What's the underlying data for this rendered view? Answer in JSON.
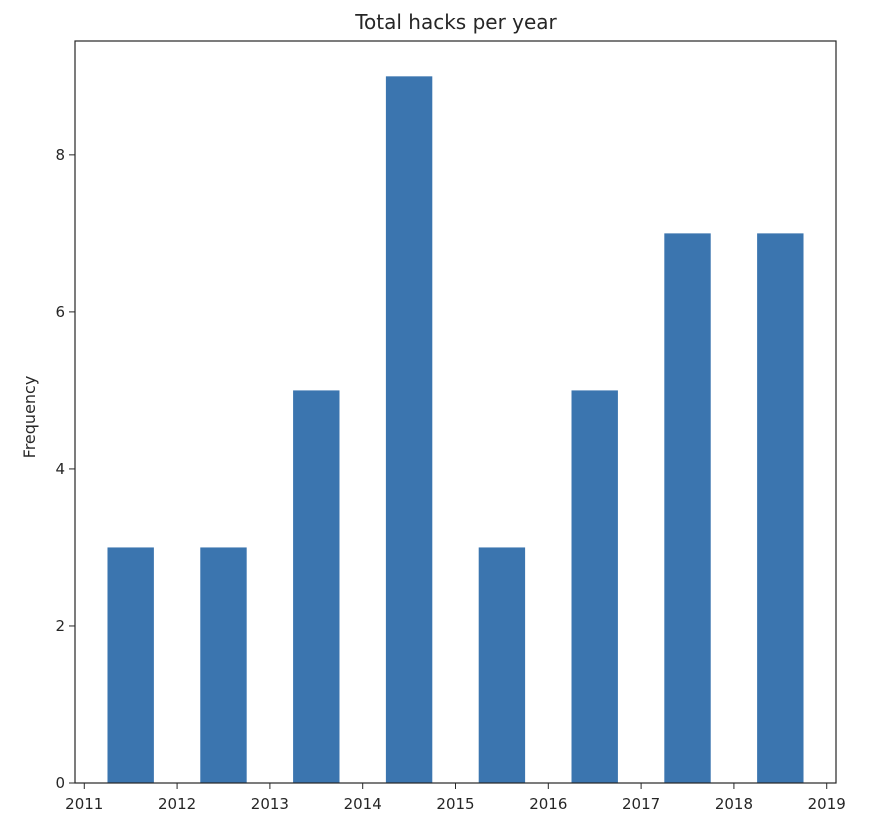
{
  "chart_data": {
    "type": "bar",
    "title": "Total hacks per year",
    "xlabel": "",
    "ylabel": "Frequency",
    "categories": [
      "2011",
      "2012",
      "2013",
      "2014",
      "2015",
      "2016",
      "2017",
      "2018"
    ],
    "values": [
      3,
      3,
      5,
      9,
      3,
      5,
      7,
      7
    ],
    "bar_color": "#3b75af",
    "x_ticks": [
      "2011",
      "2012",
      "2013",
      "2014",
      "2015",
      "2016",
      "2017",
      "2018",
      "2019"
    ],
    "y_ticks": [
      "0",
      "2",
      "4",
      "6",
      "8"
    ],
    "ylim": [
      0,
      9.45
    ],
    "grid": false,
    "legend": "none"
  }
}
